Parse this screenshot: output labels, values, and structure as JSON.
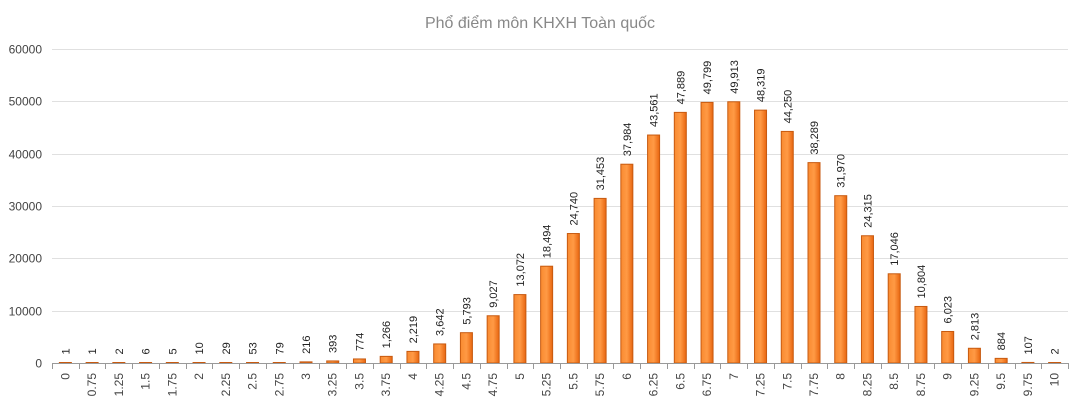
{
  "chart_data": {
    "type": "bar",
    "title": "Phổ điểm môn KHXH Toàn quốc",
    "xlabel": "",
    "ylabel": "",
    "ylim": [
      0,
      60000
    ],
    "yticks": [
      0,
      10000,
      20000,
      30000,
      40000,
      50000,
      60000
    ],
    "grid": true,
    "legend": "none",
    "bar_color": "#f47a20",
    "bar_border": "#c75a10",
    "categories": [
      "0",
      "0.75",
      "1.25",
      "1.5",
      "1.75",
      "2",
      "2.25",
      "2.5",
      "2.75",
      "3",
      "3.25",
      "3.5",
      "3.75",
      "4",
      "4.25",
      "4.5",
      "4.75",
      "5",
      "5.25",
      "5.5",
      "5.75",
      "6",
      "6.25",
      "6.5",
      "6.75",
      "7",
      "7.25",
      "7.5",
      "7.75",
      "8",
      "8.25",
      "8.5",
      "8.75",
      "9",
      "9.25",
      "9.5",
      "9.75",
      "10"
    ],
    "values": [
      1,
      1,
      2,
      6,
      5,
      10,
      29,
      53,
      79,
      216,
      393,
      774,
      1266,
      2219,
      3642,
      5793,
      9027,
      13072,
      18494,
      24740,
      31453,
      37984,
      43561,
      47889,
      49799,
      49913,
      48319,
      44250,
      38289,
      31970,
      24315,
      17046,
      10804,
      6023,
      2813,
      884,
      107,
      2
    ],
    "data_labels": [
      "1",
      "1",
      "2",
      "6",
      "5",
      "10",
      "29",
      "53",
      "79",
      "216",
      "393",
      "774",
      "1,266",
      "2,219",
      "3,642",
      "5,793",
      "9,027",
      "13,072",
      "18,494",
      "24,740",
      "31,453",
      "37,984",
      "43,561",
      "47,889",
      "49,799",
      "49,913",
      "48,319",
      "44,250",
      "38,289",
      "31,970",
      "24,315",
      "17,046",
      "10,804",
      "6,023",
      "2,813",
      "884",
      "107",
      "2"
    ]
  }
}
